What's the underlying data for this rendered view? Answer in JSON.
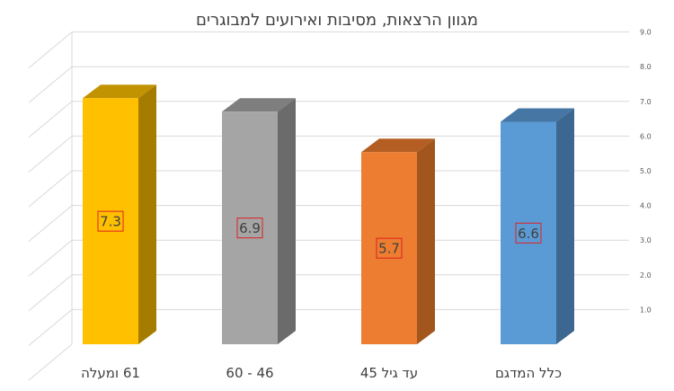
{
  "chart_data": {
    "type": "bar",
    "title": "מגוון הרצאות, מסיבות ואירועים למבוגרים",
    "categories": [
      "61 ומעלה",
      "46 - 60",
      "עד גיל 45",
      "כלל המדגם"
    ],
    "values": [
      7.3,
      6.9,
      5.7,
      6.6
    ],
    "value_labels": [
      "7.3",
      "6.9",
      "5.7",
      "6.6"
    ],
    "ylim": [
      0,
      9
    ],
    "yticks": [
      "1.0",
      "2.0",
      "3.0",
      "4.0",
      "5.0",
      "6.0",
      "7.0",
      "8.0",
      "9.0"
    ],
    "y_axis_position": "right",
    "grid": true,
    "style": "3d-column",
    "colors": {
      "front": [
        "#FFC000",
        "#A5A5A5",
        "#ED7D31",
        "#5B9BD5"
      ],
      "side": [
        "#A67C00",
        "#6B6B6B",
        "#A2561E",
        "#3C6790"
      ],
      "top": [
        "#C29300",
        "#7E7E7E",
        "#B55E24",
        "#4676A3"
      ],
      "gridline": "#D9D9D9",
      "label_border": "#E02020",
      "text": "#404040"
    }
  }
}
